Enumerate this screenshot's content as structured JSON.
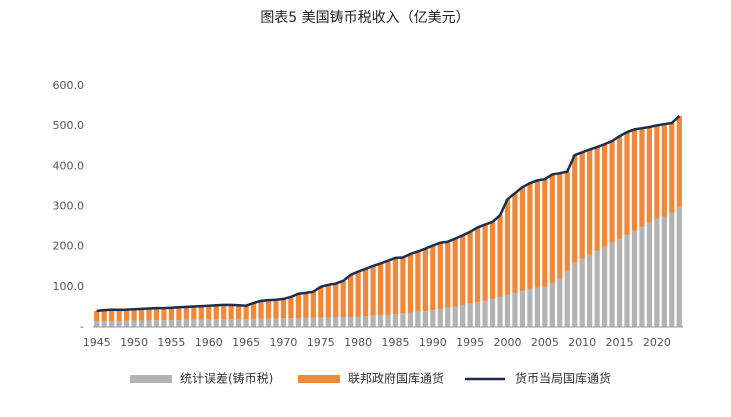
{
  "chart_data": {
    "type": "stacked_bar_line",
    "title": "图表5 美国铸币税收入（亿美元）",
    "categories": [
      "1945",
      null,
      null,
      null,
      null,
      "1950",
      null,
      null,
      null,
      null,
      "1955",
      null,
      null,
      null,
      null,
      "1960",
      null,
      null,
      null,
      null,
      "1965",
      null,
      null,
      null,
      null,
      "1970",
      null,
      null,
      null,
      null,
      "1975",
      null,
      null,
      null,
      null,
      "1980",
      null,
      null,
      null,
      null,
      "1985",
      null,
      null,
      null,
      null,
      "1990",
      null,
      null,
      null,
      null,
      "1995",
      null,
      null,
      null,
      null,
      "2000",
      null,
      null,
      null,
      null,
      "2005",
      null,
      null,
      null,
      null,
      "2010",
      null,
      null,
      null,
      null,
      "2015",
      null,
      null,
      null,
      null,
      "2020",
      null,
      null,
      null
    ],
    "series": [
      {
        "name": "统计误差(铸币税)",
        "color": "#b3b3b3",
        "kind": "bar",
        "values": [
          15,
          15,
          15,
          15,
          16,
          16,
          16,
          16,
          17,
          17,
          17,
          17,
          18,
          18,
          18,
          19,
          19,
          19,
          20,
          20,
          20,
          20,
          21,
          21,
          21,
          22,
          22,
          22,
          23,
          23,
          23,
          24,
          24,
          25,
          25,
          26,
          27,
          28,
          29,
          30,
          32,
          34,
          36,
          38,
          40,
          42,
          45,
          48,
          51,
          55,
          58,
          62,
          66,
          70,
          75,
          80,
          85,
          90,
          95,
          98,
          100,
          110,
          120,
          140,
          160,
          170,
          180,
          190,
          200,
          210,
          220,
          230,
          240,
          250,
          260,
          270,
          275,
          285,
          300
        ]
      },
      {
        "name": "联邦政府国库通货",
        "color": "#f0883a",
        "kind": "bar",
        "values": [
          25,
          27,
          28,
          28,
          27,
          28,
          29,
          30,
          30,
          30,
          31,
          32,
          32,
          33,
          34,
          34,
          35,
          36,
          35,
          34,
          33,
          40,
          44,
          46,
          47,
          48,
          53,
          61,
          62,
          65,
          77,
          81,
          84,
          90,
          105,
          112,
          118,
          124,
          129,
          135,
          140,
          139,
          146,
          150,
          155,
          161,
          165,
          164,
          169,
          173,
          179,
          186,
          189,
          192,
          203,
          238,
          248,
          258,
          263,
          267,
          268,
          270,
          263,
          247,
          268,
          265,
          262,
          258,
          255,
          253,
          255,
          255,
          252,
          245,
          238,
          232,
          230,
          223,
          225
        ]
      },
      {
        "name": "货币当局国库通货",
        "color": "#1f2d4f",
        "kind": "line",
        "values": [
          40,
          42,
          43,
          43,
          43,
          44,
          45,
          46,
          47,
          47,
          48,
          49,
          50,
          51,
          52,
          53,
          54,
          55,
          55,
          54,
          53,
          60,
          65,
          67,
          68,
          70,
          75,
          83,
          85,
          88,
          100,
          105,
          108,
          115,
          130,
          138,
          145,
          152,
          158,
          165,
          172,
          173,
          182,
          188,
          195,
          203,
          210,
          212,
          220,
          228,
          237,
          248,
          255,
          262,
          278,
          318,
          333,
          348,
          358,
          365,
          368,
          380,
          383,
          387,
          428,
          435,
          442,
          448,
          455,
          463,
          475,
          485,
          492,
          495,
          498,
          502,
          505,
          508,
          525
        ]
      }
    ],
    "ylim": [
      0,
      600
    ],
    "yticks": [
      {
        "value": 0,
        "label": "-"
      },
      {
        "value": 100,
        "label": "100.0"
      },
      {
        "value": 200,
        "label": "200.0"
      },
      {
        "value": 300,
        "label": "300.0"
      },
      {
        "value": 400,
        "label": "400.0"
      },
      {
        "value": 500,
        "label": "500.0"
      },
      {
        "value": 600,
        "label": "600.0"
      }
    ],
    "grid": false
  }
}
